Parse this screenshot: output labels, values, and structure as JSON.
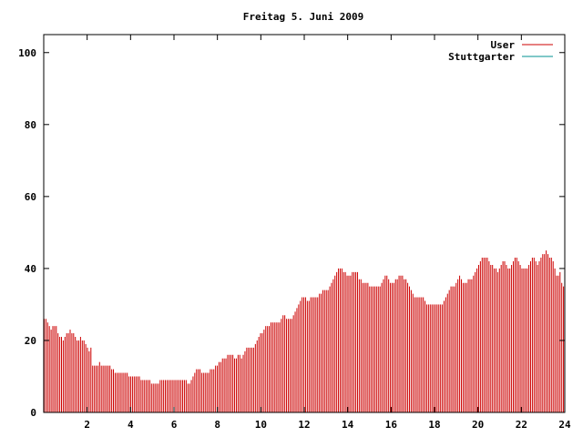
{
  "chart_data": {
    "type": "bar",
    "title": "Freitag 5. Juni 2009",
    "xlabel": "",
    "ylabel": "",
    "xlim": [
      0,
      24
    ],
    "ylim": [
      0,
      105
    ],
    "x_ticks": [
      "2",
      "4",
      "6",
      "8",
      "10",
      "12",
      "14",
      "16",
      "18",
      "20",
      "22",
      "24"
    ],
    "y_ticks": [
      "0",
      "20",
      "40",
      "60",
      "80",
      "100"
    ],
    "grid": false,
    "legend_position": "top-right",
    "series": [
      {
        "name": "User",
        "color": "#cc0000",
        "x_step_hours": 0.0833,
        "values": [
          26,
          26,
          25,
          24,
          23,
          24,
          24,
          24,
          22,
          21,
          21,
          20,
          21,
          22,
          22,
          23,
          22,
          22,
          21,
          20,
          20,
          21,
          20,
          20,
          19,
          18,
          17,
          18,
          13,
          13,
          13,
          13,
          14,
          13,
          13,
          13,
          13,
          13,
          13,
          12,
          12,
          11,
          11,
          11,
          11,
          11,
          11,
          11,
          11,
          10,
          10,
          10,
          10,
          10,
          10,
          10,
          9,
          9,
          9,
          9,
          9,
          9,
          8,
          8,
          8,
          8,
          8,
          9,
          9,
          9,
          9,
          9,
          9,
          9,
          9,
          9,
          9,
          9,
          9,
          9,
          9,
          9,
          9,
          8,
          8,
          9,
          10,
          11,
          12,
          12,
          12,
          11,
          11,
          11,
          11,
          11,
          12,
          12,
          12,
          13,
          13,
          14,
          14,
          15,
          15,
          15,
          16,
          16,
          16,
          16,
          15,
          15,
          16,
          16,
          15,
          16,
          17,
          18,
          18,
          18,
          18,
          18,
          19,
          20,
          21,
          22,
          22,
          23,
          24,
          24,
          24,
          25,
          25,
          25,
          25,
          25,
          25,
          26,
          27,
          27,
          26,
          26,
          26,
          26,
          27,
          28,
          29,
          30,
          31,
          32,
          32,
          32,
          31,
          31,
          32,
          32,
          32,
          32,
          32,
          33,
          33,
          34,
          34,
          34,
          34,
          35,
          36,
          37,
          38,
          39,
          40,
          40,
          40,
          39,
          39,
          38,
          38,
          38,
          39,
          39,
          39,
          39,
          37,
          37,
          36,
          36,
          36,
          36,
          35,
          35,
          35,
          35,
          35,
          35,
          35,
          36,
          37,
          38,
          38,
          37,
          36,
          36,
          36,
          37,
          37,
          38,
          38,
          38,
          37,
          37,
          36,
          35,
          34,
          33,
          32,
          32,
          32,
          32,
          32,
          32,
          31,
          30,
          30,
          30,
          30,
          30,
          30,
          30,
          30,
          30,
          30,
          31,
          32,
          33,
          34,
          35,
          35,
          35,
          36,
          37,
          38,
          37,
          36,
          36,
          36,
          37,
          37,
          37,
          38,
          39,
          40,
          41,
          42,
          43,
          43,
          43,
          43,
          42,
          41,
          41,
          40,
          40,
          39,
          40,
          41,
          42,
          42,
          41,
          40,
          40,
          41,
          42,
          43,
          43,
          42,
          41,
          40,
          40,
          40,
          40,
          41,
          42,
          43,
          43,
          42,
          41,
          42,
          43,
          44,
          44,
          45,
          44,
          43,
          43,
          42,
          40,
          38,
          38,
          39,
          36,
          35
        ]
      },
      {
        "name": "Stuttgarter",
        "color": "#009090",
        "values": []
      }
    ]
  }
}
